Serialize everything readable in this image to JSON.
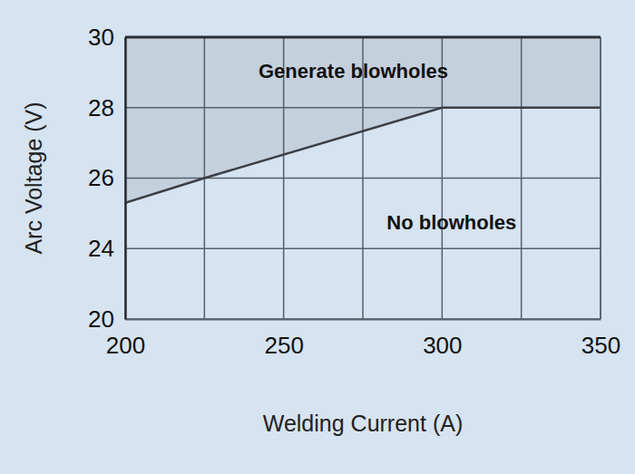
{
  "chart_data": {
    "type": "area",
    "x_label": "Welding Current (A)",
    "y_label": "Arc Voltage (V)",
    "x": [
      200,
      225,
      300,
      350
    ],
    "series": [
      {
        "color": "#c5d0dd",
        "values": [
          25.3,
          26,
          28,
          28
        ]
      }
    ],
    "xlim": [
      200,
      350
    ],
    "ylim": [
      20,
      30
    ],
    "xticks": [
      200,
      250,
      300,
      350
    ],
    "yticks": [
      20,
      24,
      26,
      28,
      30
    ],
    "grid": true,
    "annotations": [
      {
        "text": "Generate blowholes",
        "x": 272,
        "y": 29
      },
      {
        "text": "No blowholes",
        "x": 303,
        "y": 24.7
      }
    ]
  }
}
